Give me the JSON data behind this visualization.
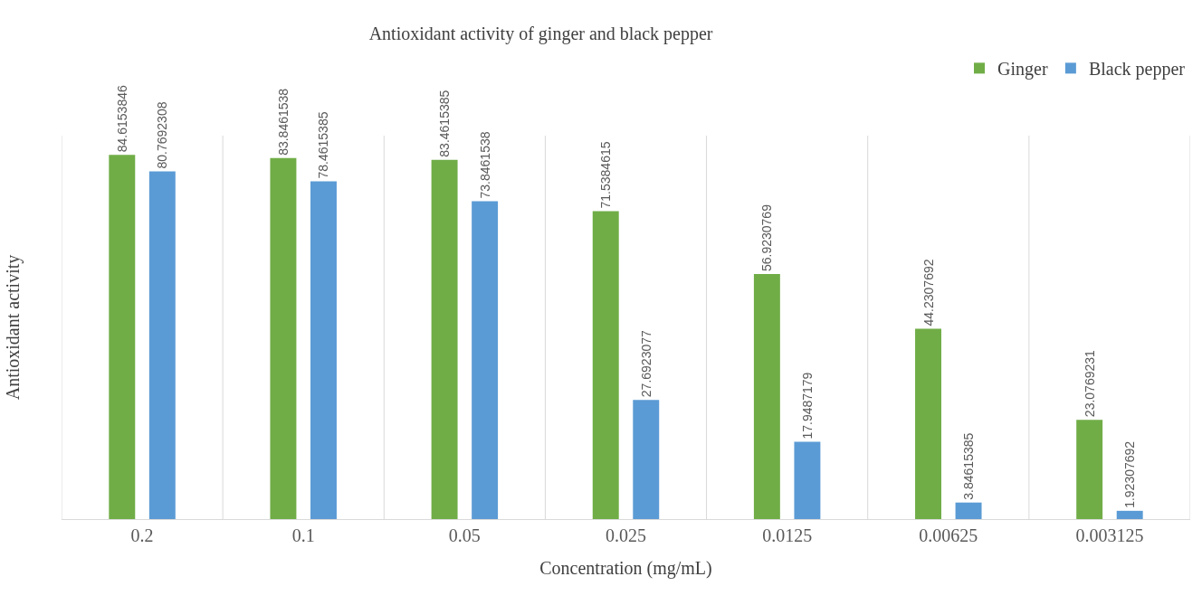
{
  "chart_data": {
    "type": "bar",
    "title": "Antioxidant activity of ginger and black pepper",
    "xlabel": "Concentration (mg/mL)",
    "ylabel": "Antioxidant activity",
    "categories": [
      "0.2",
      "0.1",
      "0.05",
      "0.025",
      "0.0125",
      "0.00625",
      "0.003125"
    ],
    "series": [
      {
        "name": "Ginger",
        "color": "#70ad47",
        "values": [
          84.6153846,
          83.8461538,
          83.4615385,
          71.5384615,
          56.9230769,
          44.2307692,
          23.0769231
        ]
      },
      {
        "name": "Black pepper",
        "color": "#5b9bd5",
        "values": [
          80.7692308,
          78.4615385,
          73.8461538,
          27.6923077,
          17.9487179,
          3.84615385,
          1.92307692
        ]
      }
    ],
    "relative": false,
    "tick_labels": "x",
    "data_labels": true,
    "grid": "x",
    "legend": "top right"
  }
}
